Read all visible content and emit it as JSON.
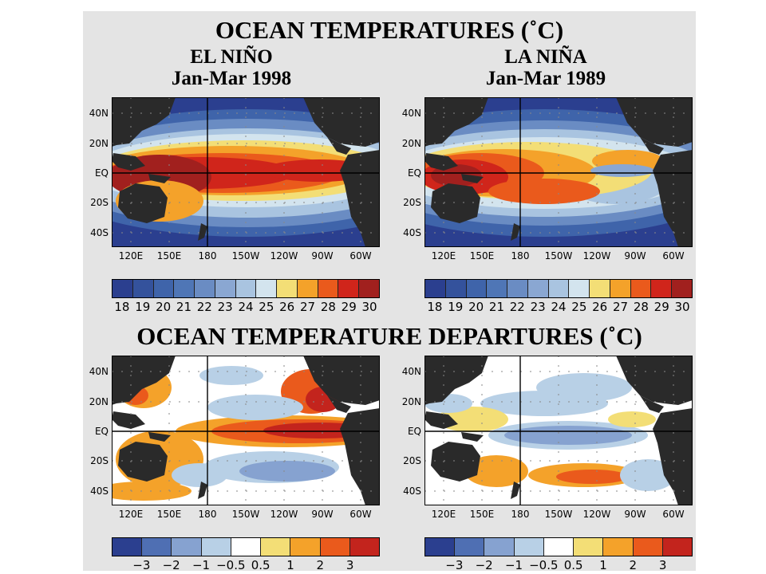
{
  "title": "OCEAN TEMPERATURES (˚C)",
  "departures_title": "OCEAN TEMPERATURE DEPARTURES (˚C)",
  "el_nino": {
    "name": "EL NIÑO",
    "period": "Jan-Mar 1998"
  },
  "la_nina": {
    "name": "LA NIÑA",
    "period": "Jan-Mar 1989"
  },
  "lat_labels": [
    "40N",
    "20N",
    "EQ",
    "20S",
    "40S"
  ],
  "lon_labels": [
    "120E",
    "150E",
    "180",
    "150W",
    "120W",
    "90W",
    "60W"
  ],
  "temp_scale": {
    "labels": [
      "18",
      "19",
      "20",
      "21",
      "22",
      "23",
      "24",
      "25",
      "26",
      "27",
      "28",
      "29",
      "30"
    ],
    "colors": [
      "#2b3f8f",
      "#34529c",
      "#3f64aa",
      "#4f76b6",
      "#6a8cc3",
      "#8aa7d2",
      "#a9c4e0",
      "#d3e4ee",
      "#f3de76",
      "#f4a22a",
      "#ea5a1c",
      "#d0251b",
      "#a1201e"
    ]
  },
  "anom_scale": {
    "labels": [
      "−3",
      "−2",
      "−1",
      "−0.5",
      "0.5",
      "1",
      "2",
      "3"
    ],
    "colors": [
      "#2b3f8f",
      "#4f6fb3",
      "#86a2d0",
      "#b8d0e6",
      "#ffffff",
      "#f3de76",
      "#f4a22a",
      "#ea5a1c",
      "#c3241d"
    ]
  },
  "land_color": "#2a2a2a"
}
